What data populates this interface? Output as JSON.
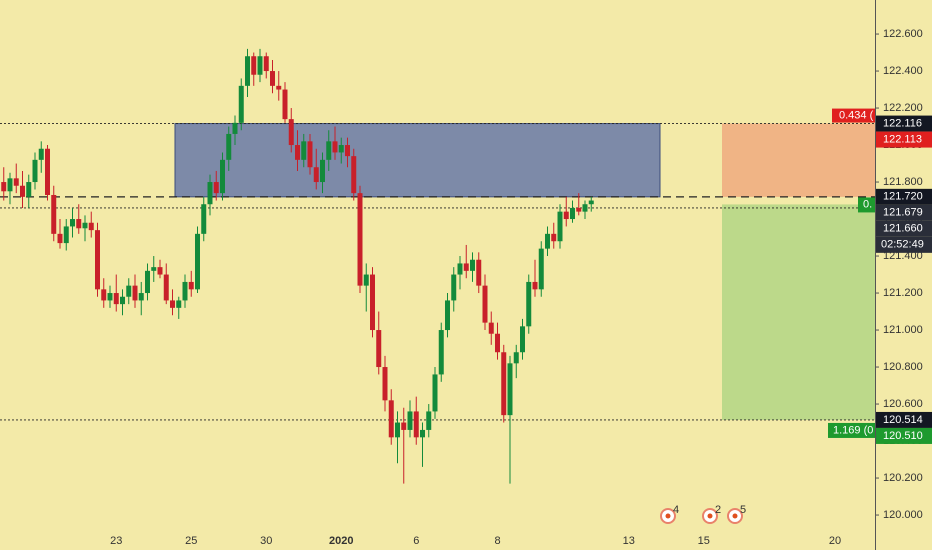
{
  "chart_data": {
    "type": "candlestick",
    "x": [
      0,
      1,
      2,
      3,
      4,
      5,
      6,
      7,
      8,
      9,
      10,
      11,
      12,
      13,
      14,
      15,
      16,
      17,
      18,
      19,
      20,
      21,
      22,
      23,
      24,
      25,
      26,
      27,
      28,
      29,
      30,
      31,
      32,
      33,
      34,
      35,
      36,
      37,
      38,
      39,
      40,
      41,
      42,
      43,
      44,
      45,
      46,
      47,
      48,
      49,
      50,
      51,
      52,
      53,
      54,
      55,
      56,
      57,
      58,
      59,
      60,
      61,
      62,
      63,
      64,
      65,
      66,
      67,
      68,
      69,
      70,
      71,
      72,
      73,
      74,
      75,
      76,
      77,
      78,
      79,
      80,
      81,
      82,
      83,
      84,
      85,
      86,
      87,
      88,
      89,
      90,
      91,
      92,
      93,
      94
    ],
    "open": [
      121.8,
      121.75,
      121.82,
      121.78,
      121.72,
      121.8,
      121.92,
      121.98,
      121.73,
      121.52,
      121.47,
      121.56,
      121.6,
      121.55,
      121.58,
      121.54,
      121.22,
      121.16,
      121.2,
      121.14,
      121.18,
      121.24,
      121.16,
      121.2,
      121.32,
      121.34,
      121.3,
      121.16,
      121.12,
      121.16,
      121.26,
      121.22,
      121.52,
      121.68,
      121.8,
      121.74,
      121.92,
      122.06,
      122.12,
      122.32,
      122.48,
      122.38,
      122.48,
      122.4,
      122.32,
      122.3,
      122.14,
      122.0,
      121.92,
      122.02,
      121.88,
      121.8,
      121.92,
      122.02,
      121.96,
      122.0,
      121.94,
      121.74,
      121.24,
      121.3,
      121.0,
      120.8,
      120.62,
      120.42,
      120.5,
      120.46,
      120.56,
      120.42,
      120.46,
      120.56,
      120.76,
      121.0,
      121.16,
      121.3,
      121.36,
      121.32,
      121.38,
      121.24,
      121.04,
      120.98,
      120.88,
      120.54,
      120.82,
      120.88,
      121.02,
      121.26,
      121.22,
      121.44,
      121.52,
      121.48,
      121.64,
      121.6,
      121.66,
      121.64,
      121.68
    ],
    "high": [
      121.88,
      121.85,
      121.9,
      121.86,
      121.84,
      121.96,
      122.02,
      122.0,
      121.78,
      121.6,
      121.6,
      121.66,
      121.68,
      121.62,
      121.64,
      121.58,
      121.28,
      121.24,
      121.3,
      121.22,
      121.28,
      121.3,
      121.26,
      121.36,
      121.4,
      121.38,
      121.36,
      121.22,
      121.18,
      121.3,
      121.32,
      121.56,
      121.72,
      121.84,
      121.86,
      121.96,
      122.1,
      122.16,
      122.36,
      122.52,
      122.5,
      122.52,
      122.5,
      122.46,
      122.4,
      122.34,
      122.2,
      122.08,
      122.06,
      122.06,
      121.98,
      121.96,
      122.08,
      122.1,
      122.04,
      122.04,
      121.98,
      121.78,
      121.36,
      121.34,
      121.1,
      120.86,
      120.68,
      120.56,
      120.58,
      120.62,
      120.64,
      120.5,
      120.6,
      120.8,
      121.04,
      121.2,
      121.34,
      121.4,
      121.46,
      121.42,
      121.42,
      121.3,
      121.1,
      121.04,
      120.92,
      120.86,
      120.92,
      121.06,
      121.3,
      121.38,
      121.48,
      121.56,
      121.58,
      121.68,
      121.72,
      121.7,
      121.74,
      121.7,
      121.72
    ],
    "low": [
      121.7,
      121.68,
      121.74,
      121.66,
      121.66,
      121.76,
      121.85,
      121.7,
      121.48,
      121.44,
      121.43,
      121.5,
      121.52,
      121.48,
      121.5,
      121.18,
      121.12,
      121.12,
      121.1,
      121.08,
      121.14,
      121.12,
      121.08,
      121.16,
      121.26,
      121.28,
      121.14,
      121.08,
      121.06,
      121.12,
      121.18,
      121.2,
      121.48,
      121.62,
      121.7,
      121.7,
      121.86,
      122.0,
      122.08,
      122.26,
      122.32,
      122.34,
      122.36,
      122.28,
      122.24,
      122.12,
      121.96,
      121.86,
      121.88,
      121.84,
      121.76,
      121.74,
      121.86,
      121.92,
      121.9,
      121.88,
      121.7,
      121.2,
      121.1,
      120.96,
      120.76,
      120.56,
      120.38,
      120.28,
      120.17,
      120.42,
      120.38,
      120.26,
      120.42,
      120.52,
      120.72,
      120.96,
      121.1,
      121.22,
      121.28,
      121.26,
      121.2,
      121.0,
      120.92,
      120.84,
      120.5,
      120.17,
      120.74,
      120.84,
      120.98,
      121.18,
      121.18,
      121.4,
      121.44,
      121.44,
      121.56,
      121.58,
      121.62,
      121.6,
      121.64
    ],
    "close": [
      121.75,
      121.82,
      121.78,
      121.72,
      121.8,
      121.92,
      121.98,
      121.73,
      121.52,
      121.47,
      121.56,
      121.6,
      121.55,
      121.58,
      121.54,
      121.22,
      121.16,
      121.2,
      121.14,
      121.18,
      121.24,
      121.16,
      121.2,
      121.32,
      121.34,
      121.3,
      121.16,
      121.12,
      121.16,
      121.26,
      121.22,
      121.52,
      121.68,
      121.8,
      121.74,
      121.92,
      122.06,
      122.12,
      122.32,
      122.48,
      122.38,
      122.48,
      122.4,
      122.32,
      122.3,
      122.14,
      122.0,
      121.92,
      122.02,
      121.88,
      121.8,
      121.92,
      122.02,
      121.96,
      122.0,
      121.94,
      121.74,
      121.24,
      121.3,
      121.0,
      120.8,
      120.62,
      120.42,
      120.5,
      120.46,
      120.56,
      120.42,
      120.46,
      120.56,
      120.76,
      121.0,
      121.16,
      121.3,
      121.36,
      121.32,
      121.38,
      121.24,
      121.04,
      120.98,
      120.88,
      120.54,
      120.82,
      120.88,
      121.02,
      121.26,
      121.22,
      121.44,
      121.52,
      121.48,
      121.64,
      121.6,
      121.66,
      121.64,
      121.68,
      121.7
    ],
    "up_color": "#138a3b",
    "down_color": "#c8202a",
    "xlim": [
      -0.6,
      139.4
    ],
    "xticks": [
      {
        "value": 18,
        "label": "23"
      },
      {
        "value": 30,
        "label": "25"
      },
      {
        "value": 42,
        "label": "30"
      },
      {
        "value": 54,
        "label": "2020"
      },
      {
        "value": 66,
        "label": "6"
      },
      {
        "value": 79,
        "label": "8"
      },
      {
        "value": 100,
        "label": "13"
      },
      {
        "value": 112,
        "label": "15"
      },
      {
        "value": 133,
        "label": "20"
      }
    ],
    "ylim": [
      119.811,
      122.784
    ],
    "yticks": [
      {
        "value": 120.0,
        "label": "120.000"
      },
      {
        "value": 120.2,
        "label": "120.200"
      },
      {
        "value": 120.4,
        "label": "120.400"
      },
      {
        "value": 120.6,
        "label": "120.600"
      },
      {
        "value": 120.8,
        "label": "120.800"
      },
      {
        "value": 121.0,
        "label": "121.000"
      },
      {
        "value": 121.2,
        "label": "121.200"
      },
      {
        "value": 121.4,
        "label": "121.400"
      },
      {
        "value": 121.6,
        "label": "121.600"
      },
      {
        "value": 121.8,
        "label": "121.800"
      },
      {
        "value": 122.0,
        "label": "122.000"
      },
      {
        "value": 122.2,
        "label": "122.200"
      },
      {
        "value": 122.4,
        "label": "122.400"
      },
      {
        "value": 122.6,
        "label": "122.600"
      }
    ],
    "levels": [
      {
        "value": 122.116,
        "color": "#131722",
        "line": "dotted"
      },
      {
        "value": 122.113,
        "color": "#e0201f"
      },
      {
        "value": 121.72,
        "label": "121.720",
        "color": "#131722",
        "line": "dashed"
      },
      {
        "value": 121.679,
        "color": "#2a2e39"
      },
      {
        "value": 121.66,
        "label": "121.660",
        "color": "#2a2e39",
        "line": "dotted",
        "countdown": "02:52:49"
      },
      {
        "value": 120.514,
        "color": "#131722",
        "line": "dotted"
      },
      {
        "value": 120.51,
        "label": "120.510",
        "color": "#1e9a2e"
      }
    ],
    "risk_label": "0.434 (",
    "reward_label": "1.169 (0",
    "entry_label": "0.",
    "events": [
      "4",
      "2",
      "5"
    ]
  }
}
